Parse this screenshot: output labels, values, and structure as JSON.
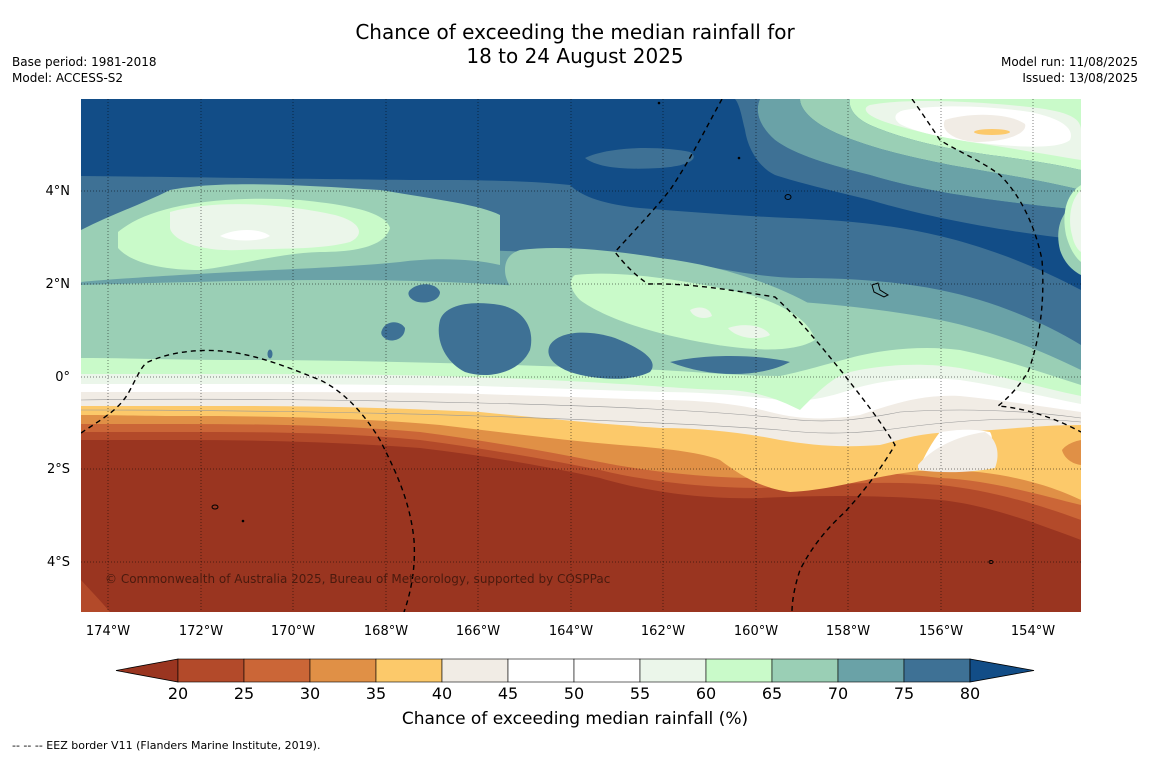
{
  "title_line1": "Chance of exceeding the median rainfall for",
  "title_line2": "18 to 24 August 2025",
  "base_period": "Base period: 1981-2018",
  "model": "Model: ACCESS-S2",
  "model_run": "Model run: 11/08/2025",
  "issued": "Issued: 13/08/2025",
  "copyright": "© Commonwealth of Australia 2025, Bureau of Meteorology, supported by COSPPac",
  "footer": "--  --  -- EEZ border V11 (Flanders Marine Institute, 2019).",
  "colorbar_label": "Chance of exceeding median rainfall (%)",
  "colorbar_ticks": [
    "20",
    "25",
    "30",
    "35",
    "40",
    "45",
    "50",
    "55",
    "60",
    "65",
    "70",
    "75",
    "80"
  ],
  "colorbar_colors": [
    "#9a3520",
    "#b34a2a",
    "#cb6637",
    "#e09046",
    "#fcc96a",
    "#f1ece5",
    "#ffffff",
    "#ffffff",
    "#ebf6ea",
    "#c9fac9",
    "#9acfb5",
    "#6aa2a7",
    "#3e7195",
    "#124d87"
  ],
  "lon_labels": [
    "174°W",
    "172°W",
    "170°W",
    "168°W",
    "166°W",
    "164°W",
    "162°W",
    "160°W",
    "158°W",
    "156°W",
    "154°W"
  ],
  "lat_labels": [
    "4°N",
    "2°N",
    "0°",
    "2°S",
    "4°S"
  ]
}
